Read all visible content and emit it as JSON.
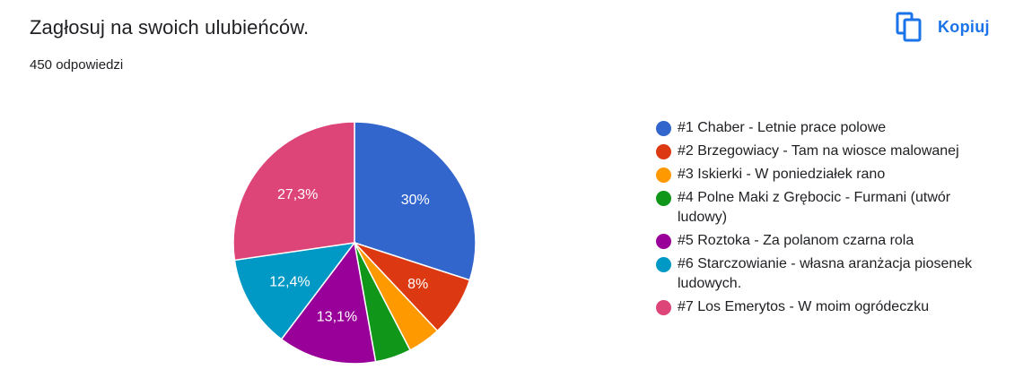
{
  "header": {
    "title": "Zagłosuj na swoich ulubieńców.",
    "response_count": "450 odpowiedzi",
    "copy_label": "Kopiuj",
    "copy_icon": "copy-icon"
  },
  "colors": {
    "accent": "#1a73e8"
  },
  "chart_data": {
    "type": "pie",
    "title": "",
    "legend_position": "right",
    "start_angle": "90° (12 o'clock), clockwise",
    "slices": [
      {
        "label": "#1 Chaber - Letnie prace polowe",
        "value": 30.0,
        "display": "30%",
        "color": "#3366cc"
      },
      {
        "label": "#2 Brzegowiacy - Tam na wiosce malowanej",
        "value": 8.0,
        "display": "8%",
        "color": "#dc3912"
      },
      {
        "label": "#3 Iskierki - W poniedziałek rano",
        "value": 4.4,
        "display": "",
        "color": "#ff9900"
      },
      {
        "label": "#4 Polne Maki z Grębocic - Furmani (utwór ludowy)",
        "value": 4.8,
        "display": "",
        "color": "#109618"
      },
      {
        "label": "#5 Roztoka - Za polanom czarna rola",
        "value": 13.1,
        "display": "13,1%",
        "color": "#990099"
      },
      {
        "label": "#6 Starczowianie - własna aranżacja piosenek ludowych.",
        "value": 12.4,
        "display": "12,4%",
        "color": "#0099c6"
      },
      {
        "label": "#7 Los Emerytos - W moim ogródeczku",
        "value": 27.3,
        "display": "27,3%",
        "color": "#dd4477"
      }
    ]
  }
}
